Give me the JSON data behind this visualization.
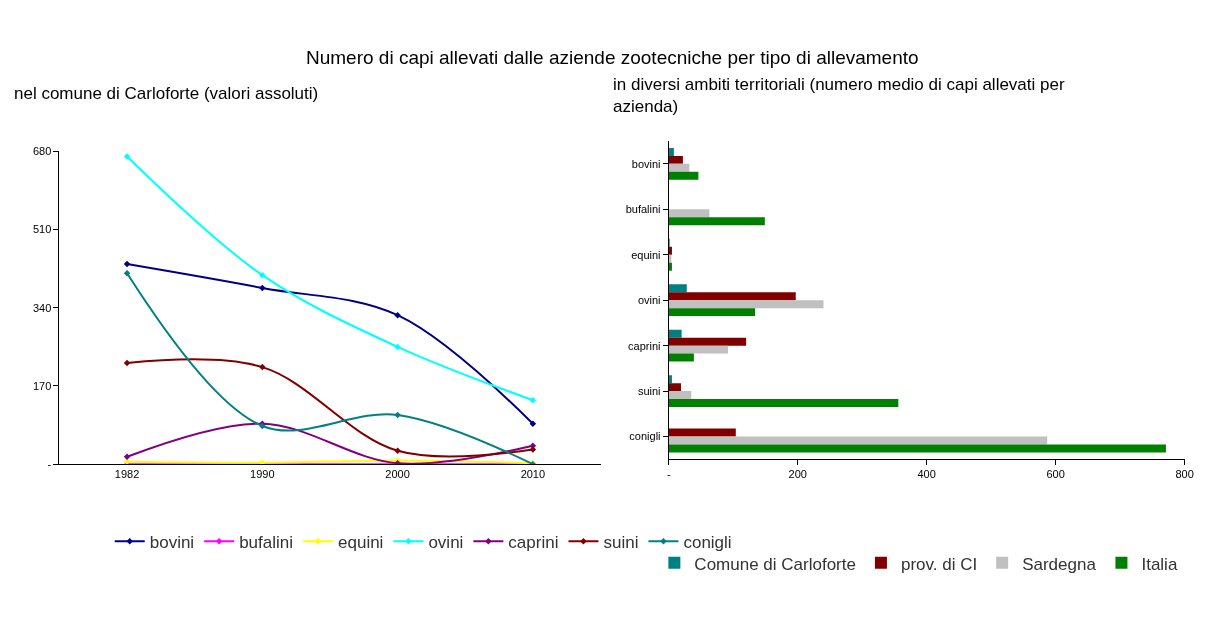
{
  "chart_data": [
    {
      "type": "line",
      "title": "Numero di capi allevati dalle aziende zootecniche per tipo di allevamento",
      "subtitle": "nel comune di Carloforte (valori assoluti)",
      "categories": [
        "1982",
        "1990",
        "2000",
        "2010"
      ],
      "ylim": [
        0,
        680
      ],
      "yticks": [
        {
          "value": 0,
          "label": "-"
        },
        170,
        340,
        510,
        680
      ],
      "marker": "diamond",
      "legend": "bottom",
      "series": [
        {
          "name": "bovini",
          "color": "#000080",
          "values": [
            435,
            383,
            324,
            88
          ]
        },
        {
          "name": "bufalini",
          "color": "#ff00ff",
          "values": [
            0,
            0,
            0,
            0
          ]
        },
        {
          "name": "equini",
          "color": "#ffff00",
          "values": [
            5,
            3,
            8,
            2
          ]
        },
        {
          "name": "ovini",
          "color": "#00ffff",
          "values": [
            669,
            411,
            255,
            139
          ]
        },
        {
          "name": "caprini",
          "color": "#800080",
          "values": [
            16,
            88,
            2,
            40
          ]
        },
        {
          "name": "suini",
          "color": "#800000",
          "values": [
            220,
            211,
            29,
            32
          ]
        },
        {
          "name": "conigli",
          "color": "#008080",
          "values": [
            415,
            83,
            107,
            0
          ]
        }
      ]
    },
    {
      "type": "bar",
      "orientation": "horizontal",
      "subtitle": "in diversi ambiti territoriali (numero medio di capi allevati per azienda)",
      "categories": [
        "bovini",
        "bufalini",
        "equini",
        "ovini",
        "caprini",
        "suini",
        "conigli"
      ],
      "xlim": [
        0,
        800
      ],
      "xticks": [
        {
          "value": 0,
          "label": "-"
        },
        200,
        400,
        600,
        800
      ],
      "legend": "bottom",
      "series": [
        {
          "name": "Comune di Carloforte",
          "color": "#008080",
          "values": [
            8,
            0,
            1,
            28,
            20,
            5,
            0
          ]
        },
        {
          "name": "prov. di CI",
          "color": "#800000",
          "values": [
            22,
            0,
            5,
            197,
            120,
            19,
            104
          ]
        },
        {
          "name": "Sardegna",
          "color": "#c0c0c0",
          "values": [
            32,
            63,
            4,
            240,
            92,
            35,
            587
          ]
        },
        {
          "name": "Italia",
          "color": "#008000",
          "values": [
            46,
            149,
            5,
            134,
            39,
            356,
            771
          ]
        }
      ]
    }
  ]
}
